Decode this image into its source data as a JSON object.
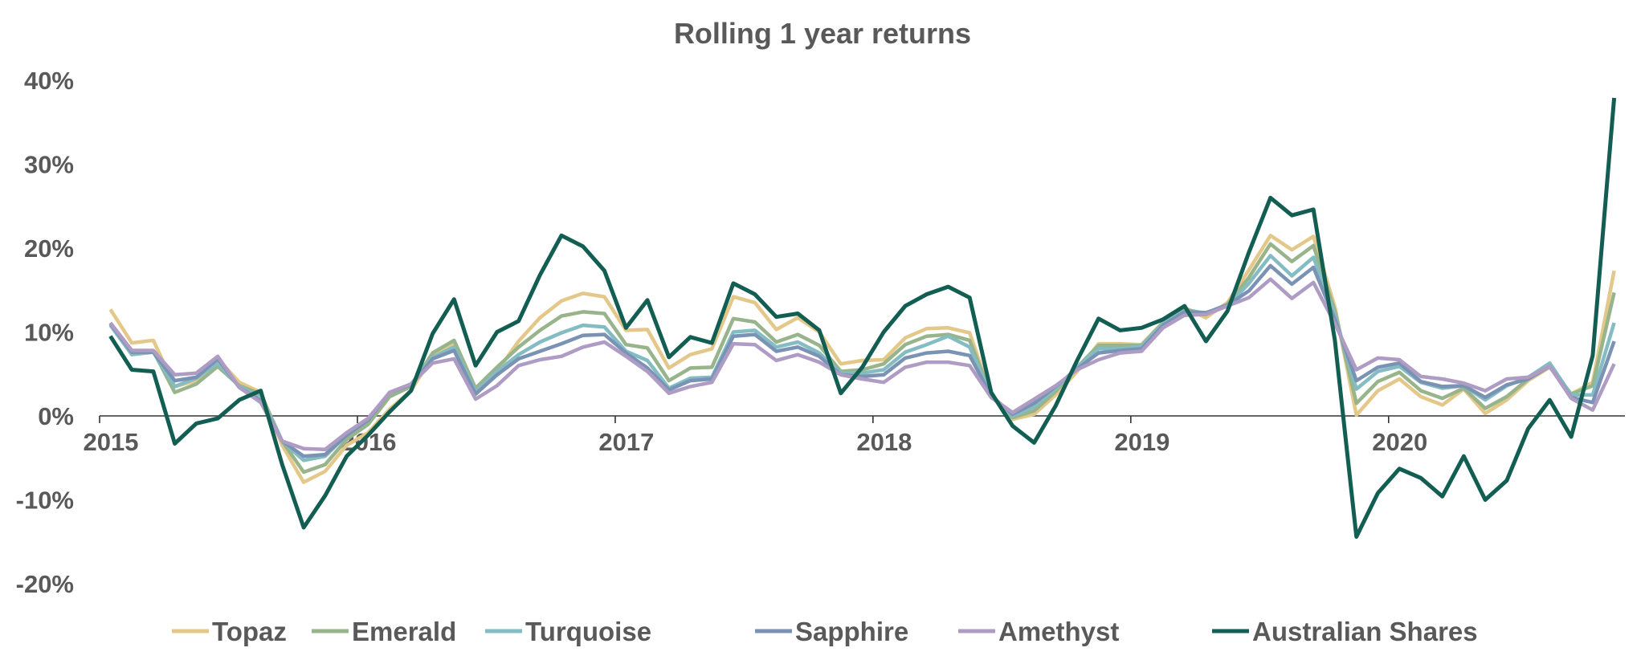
{
  "chart_data": {
    "type": "line",
    "title": "Rolling 1 year returns",
    "xlabel": "",
    "ylabel": "",
    "x_start": "2015-01",
    "x_frequency": "monthly",
    "x_end": "2020-11",
    "x_tick_labels": [
      "2015",
      "2016",
      "2017",
      "2018",
      "2019",
      "2020"
    ],
    "y_tick_labels": [
      "40%",
      "30%",
      "20%",
      "10%",
      "0%",
      "-10%",
      "-20%"
    ],
    "y_unit": "%",
    "ylim": [
      -20,
      40
    ],
    "grid": false,
    "legend_position": "bottom",
    "series": [
      {
        "name": "Topaz",
        "color": "#E3C88A",
        "values": [
          12.7,
          8.7,
          9.0,
          3.5,
          4.2,
          6.8,
          4.0,
          2.8,
          -3.5,
          -7.9,
          -6.6,
          -3.5,
          -2.0,
          0.8,
          3.0,
          7.2,
          8.6,
          3.1,
          5.3,
          8.9,
          11.7,
          13.7,
          14.6,
          14.2,
          10.2,
          10.3,
          5.7,
          7.3,
          8.0,
          14.2,
          13.5,
          10.3,
          11.7,
          10.0,
          6.2,
          6.6,
          6.7,
          9.3,
          10.4,
          10.5,
          9.9,
          2.4,
          -0.4,
          0.2,
          2.5,
          5.3,
          8.6,
          8.6,
          8.5,
          11.2,
          12.9,
          11.7,
          13.5,
          17.4,
          21.5,
          19.8,
          21.4,
          13.0,
          0.1,
          3.0,
          4.4,
          2.3,
          1.3,
          3.2,
          0.3,
          1.9,
          4.2,
          5.8,
          2.6,
          4.0,
          17.3
        ]
      },
      {
        "name": "Emerald",
        "color": "#97B48B",
        "values": [
          11.0,
          7.6,
          7.7,
          2.8,
          3.8,
          5.9,
          3.6,
          2.6,
          -3.0,
          -6.7,
          -5.8,
          -2.8,
          -1.0,
          2.3,
          3.5,
          7.5,
          9.0,
          3.3,
          5.8,
          8.2,
          10.2,
          11.9,
          12.4,
          12.2,
          8.5,
          8.1,
          4.2,
          5.7,
          5.8,
          11.6,
          11.2,
          8.8,
          9.7,
          8.4,
          5.3,
          5.5,
          6.2,
          8.5,
          9.5,
          9.7,
          9.0,
          2.5,
          -0.2,
          0.6,
          2.9,
          5.8,
          8.4,
          8.4,
          8.4,
          11.1,
          12.7,
          12.2,
          13.3,
          16.5,
          20.5,
          18.4,
          20.3,
          12.5,
          1.5,
          4.1,
          5.2,
          3.0,
          2.1,
          3.3,
          0.9,
          2.3,
          4.4,
          6.0,
          2.6,
          3.6,
          14.7
        ]
      },
      {
        "name": "Turquoise",
        "color": "#84BCC3",
        "values": [
          10.8,
          7.3,
          7.6,
          3.5,
          4.5,
          6.3,
          3.5,
          2.2,
          -3.0,
          -5.3,
          -4.8,
          -2.3,
          -0.5,
          2.8,
          3.8,
          7.0,
          8.2,
          2.9,
          5.3,
          7.3,
          8.8,
          9.9,
          10.8,
          10.6,
          7.7,
          6.6,
          3.3,
          4.5,
          4.6,
          10.0,
          10.2,
          8.2,
          8.8,
          7.5,
          5.1,
          5.1,
          5.5,
          7.6,
          8.5,
          9.5,
          8.2,
          2.4,
          0.0,
          1.1,
          3.3,
          5.8,
          8.0,
          8.0,
          8.3,
          11.0,
          12.5,
          12.3,
          13.1,
          15.8,
          19.1,
          16.7,
          18.9,
          12.0,
          3.2,
          5.3,
          5.9,
          4.0,
          3.3,
          3.6,
          1.9,
          3.6,
          4.6,
          6.3,
          2.5,
          2.5,
          11.1
        ]
      },
      {
        "name": "Sapphire",
        "color": "#7A93B4",
        "values": [
          11.0,
          7.6,
          7.6,
          4.2,
          4.6,
          6.8,
          3.4,
          1.8,
          -3.0,
          -4.8,
          -4.6,
          -2.3,
          -0.5,
          2.8,
          3.7,
          6.8,
          7.8,
          2.6,
          4.9,
          6.8,
          7.7,
          8.6,
          9.6,
          9.7,
          7.5,
          5.7,
          3.1,
          4.2,
          4.4,
          9.5,
          9.7,
          7.7,
          8.2,
          7.1,
          4.9,
          4.7,
          4.9,
          6.9,
          7.5,
          7.7,
          7.2,
          2.4,
          0.2,
          1.5,
          3.5,
          5.6,
          7.5,
          7.8,
          8.0,
          10.8,
          12.4,
          12.3,
          13.2,
          14.9,
          17.9,
          15.7,
          17.7,
          11.5,
          4.2,
          5.8,
          6.3,
          4.1,
          3.5,
          3.6,
          2.2,
          3.7,
          4.4,
          5.9,
          2.2,
          1.6,
          8.9
        ]
      },
      {
        "name": "Amethyst",
        "color": "#AE9CC4",
        "values": [
          11.1,
          7.8,
          7.8,
          4.9,
          5.1,
          7.1,
          3.4,
          1.6,
          -3.0,
          -3.9,
          -4.0,
          -2.0,
          -0.3,
          2.8,
          3.8,
          6.3,
          6.8,
          2.0,
          3.6,
          6.0,
          6.7,
          7.1,
          8.2,
          8.8,
          7.1,
          5.3,
          2.7,
          3.5,
          4.0,
          8.6,
          8.5,
          6.6,
          7.3,
          6.4,
          4.9,
          4.4,
          4.0,
          5.8,
          6.4,
          6.4,
          6.0,
          2.2,
          0.4,
          2.0,
          3.6,
          5.5,
          6.7,
          7.5,
          7.7,
          10.5,
          12.0,
          12.1,
          13.1,
          14.1,
          16.3,
          14.0,
          15.9,
          11.0,
          5.5,
          6.9,
          6.7,
          4.7,
          4.4,
          3.9,
          3.0,
          4.4,
          4.6,
          5.9,
          2.1,
          0.7,
          6.2
        ]
      },
      {
        "name": "Australian Shares",
        "color": "#135E52",
        "values": [
          9.5,
          5.5,
          5.3,
          -3.3,
          -0.9,
          -0.3,
          1.9,
          3.0,
          -5.8,
          -13.3,
          -9.5,
          -4.8,
          -2.3,
          0.5,
          3.0,
          9.8,
          13.9,
          6.0,
          10.0,
          11.3,
          16.8,
          21.5,
          20.2,
          17.3,
          10.5,
          13.8,
          7.0,
          9.4,
          8.7,
          15.8,
          14.5,
          11.8,
          12.2,
          10.2,
          2.7,
          5.8,
          10.0,
          13.1,
          14.5,
          15.4,
          14.1,
          2.8,
          -1.2,
          -3.2,
          1.2,
          6.6,
          11.6,
          10.2,
          10.5,
          11.5,
          13.1,
          8.9,
          12.5,
          19.5,
          26.0,
          23.9,
          24.6,
          9.0,
          -14.4,
          -9.2,
          -6.3,
          -7.4,
          -9.6,
          -4.8,
          -10.0,
          -7.7,
          -1.5,
          1.9,
          -2.5,
          7.2,
          37.9
        ]
      }
    ]
  }
}
